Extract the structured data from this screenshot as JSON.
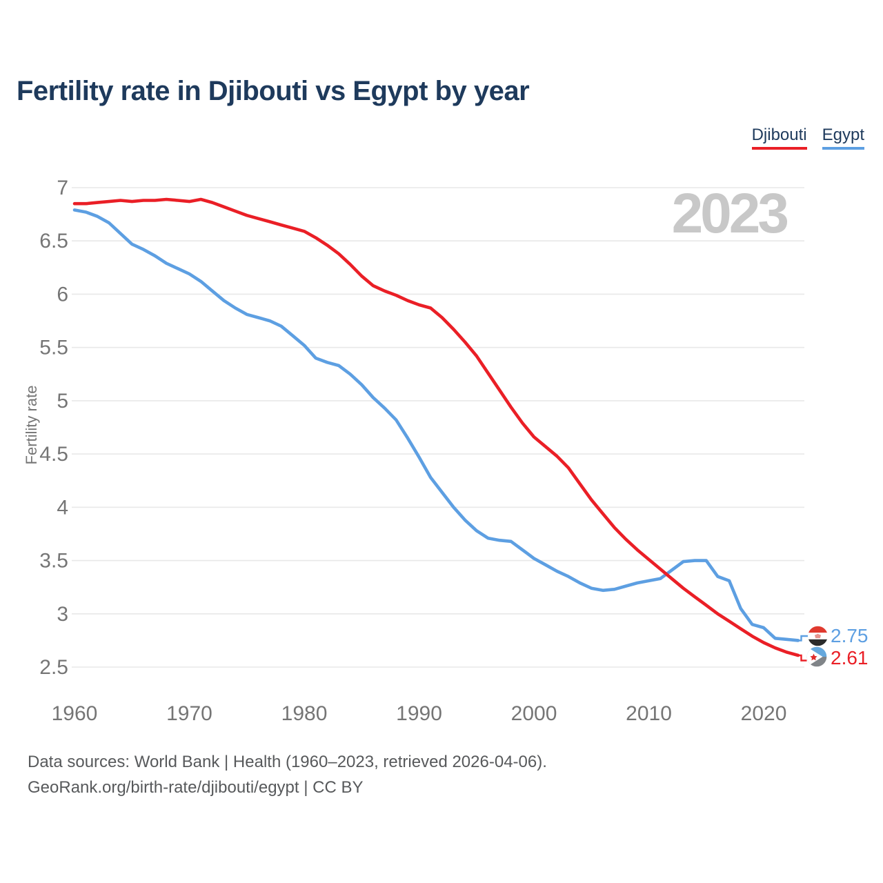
{
  "title": "Fertility rate in Djibouti vs Egypt by year",
  "legend": {
    "djibouti": "Djibouti",
    "egypt": "Egypt"
  },
  "watermark": "2023",
  "y_axis_title": "Fertility rate",
  "end_labels": {
    "egypt": {
      "value": "2.75",
      "flag": "egypt-flag"
    },
    "djibouti": {
      "value": "2.61",
      "flag": "djibouti-flag"
    }
  },
  "footer": {
    "line1": "Data sources: World Bank | Health (1960–2023, retrieved 2026-04-06).",
    "line2": "GeoRank.org/birth-rate/djibouti/egypt | CC BY"
  },
  "colors": {
    "djibouti": "#ea1f26",
    "egypt": "#5d9fe2",
    "title_navy": "#1e3a5c",
    "tick_gray": "#757575",
    "watermark_gray": "#c8c8c8",
    "gridline": "#e8e8e8"
  },
  "chart_data": {
    "type": "line",
    "title": "Fertility rate in Djibouti vs Egypt by year",
    "xlabel": "",
    "ylabel": "Fertility rate",
    "grid": true,
    "legend_position": "top-right",
    "xlim": [
      1960,
      2023
    ],
    "ylim": [
      2.5,
      7
    ],
    "x_ticks": [
      1960,
      1970,
      1980,
      1990,
      2000,
      2010,
      2020
    ],
    "y_ticks": [
      7,
      6.5,
      6,
      5.5,
      5,
      4.5,
      4,
      3.5,
      3,
      2.5
    ],
    "x": [
      1960,
      1961,
      1962,
      1963,
      1964,
      1965,
      1966,
      1967,
      1968,
      1969,
      1970,
      1971,
      1972,
      1973,
      1974,
      1975,
      1976,
      1977,
      1978,
      1979,
      1980,
      1981,
      1982,
      1983,
      1984,
      1985,
      1986,
      1987,
      1988,
      1989,
      1990,
      1991,
      1992,
      1993,
      1994,
      1995,
      1996,
      1997,
      1998,
      1999,
      2000,
      2001,
      2002,
      2003,
      2004,
      2005,
      2006,
      2007,
      2008,
      2009,
      2010,
      2011,
      2012,
      2013,
      2014,
      2015,
      2016,
      2017,
      2018,
      2019,
      2020,
      2021,
      2022,
      2023
    ],
    "series": [
      {
        "name": "Djibouti",
        "color": "#ea1f26",
        "values": [
          6.85,
          6.85,
          6.86,
          6.87,
          6.88,
          6.87,
          6.88,
          6.88,
          6.89,
          6.88,
          6.87,
          6.89,
          6.86,
          6.82,
          6.78,
          6.74,
          6.71,
          6.68,
          6.65,
          6.62,
          6.59,
          6.53,
          6.46,
          6.38,
          6.28,
          6.17,
          6.08,
          6.03,
          5.99,
          5.94,
          5.9,
          5.87,
          5.78,
          5.67,
          5.55,
          5.42,
          5.26,
          5.1,
          4.94,
          4.79,
          4.66,
          4.57,
          4.48,
          4.37,
          4.22,
          4.07,
          3.94,
          3.81,
          3.7,
          3.6,
          3.51,
          3.42,
          3.33,
          3.24,
          3.16,
          3.08,
          3.0,
          2.93,
          2.86,
          2.79,
          2.73,
          2.68,
          2.64,
          2.61
        ]
      },
      {
        "name": "Egypt",
        "color": "#5d9fe2",
        "values": [
          6.79,
          6.77,
          6.73,
          6.67,
          6.57,
          6.47,
          6.42,
          6.36,
          6.29,
          6.24,
          6.19,
          6.12,
          6.03,
          5.94,
          5.87,
          5.81,
          5.78,
          5.75,
          5.7,
          5.61,
          5.52,
          5.4,
          5.36,
          5.33,
          5.25,
          5.15,
          5.03,
          4.93,
          4.82,
          4.65,
          4.47,
          4.28,
          4.14,
          4.0,
          3.88,
          3.78,
          3.71,
          3.69,
          3.68,
          3.6,
          3.52,
          3.46,
          3.4,
          3.35,
          3.29,
          3.24,
          3.22,
          3.23,
          3.26,
          3.29,
          3.31,
          3.33,
          3.41,
          3.49,
          3.5,
          3.5,
          3.35,
          3.31,
          3.05,
          2.9,
          2.87,
          2.77,
          2.76,
          2.75
        ]
      }
    ]
  }
}
